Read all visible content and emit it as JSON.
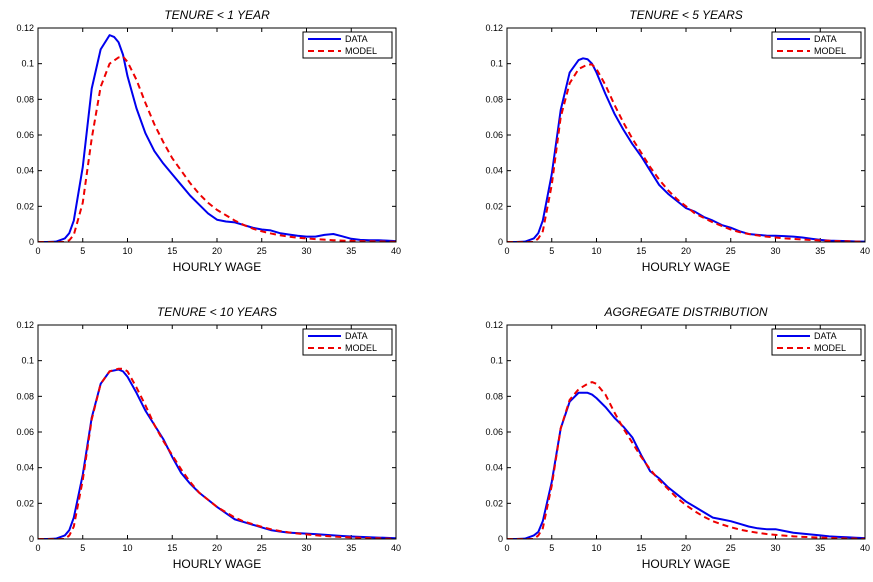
{
  "chart_data": [
    {
      "type": "line",
      "title": "TENURE < 1 YEAR",
      "xlabel": "HOURLY WAGE",
      "ylabel": "",
      "xlim": [
        0,
        40
      ],
      "ylim": [
        0,
        0.12
      ],
      "xticks": [
        "0",
        "5",
        "10",
        "15",
        "20",
        "25",
        "30",
        "35",
        "40"
      ],
      "yticks": [
        "0",
        "0.02",
        "0.04",
        "0.06",
        "0.08",
        "0.1",
        "0.12"
      ],
      "grid": false,
      "legend_position": "top-right",
      "series": [
        {
          "name": "DATA",
          "color": "#0000ee",
          "style": "solid",
          "x": [
            0,
            1,
            2,
            3,
            3.5,
            4,
            5,
            6,
            7,
            8,
            8.5,
            9,
            9.5,
            10,
            11,
            12,
            13,
            14,
            15,
            16,
            17,
            18,
            19,
            20,
            21,
            22,
            23,
            24,
            25,
            26,
            27,
            28,
            29,
            30,
            31,
            32,
            33,
            34,
            35,
            36,
            37,
            38,
            39,
            40
          ],
          "y": [
            0,
            0,
            0.0002,
            0.002,
            0.005,
            0.012,
            0.042,
            0.086,
            0.108,
            0.116,
            0.115,
            0.112,
            0.105,
            0.093,
            0.075,
            0.061,
            0.051,
            0.044,
            0.038,
            0.032,
            0.026,
            0.021,
            0.016,
            0.0125,
            0.0115,
            0.011,
            0.0095,
            0.008,
            0.007,
            0.0065,
            0.005,
            0.0042,
            0.0035,
            0.003,
            0.003,
            0.004,
            0.0045,
            0.0032,
            0.0018,
            0.0012,
            0.001,
            0.001,
            0.0008,
            0.0005
          ]
        },
        {
          "name": "MODEL",
          "color": "#ee0000",
          "style": "dashed",
          "x": [
            0,
            1,
            2,
            3,
            3.5,
            4,
            5,
            6,
            7,
            8,
            9,
            9.5,
            10,
            11,
            12,
            13,
            14,
            15,
            16,
            17,
            18,
            19,
            20,
            21,
            22,
            23,
            24,
            25,
            26,
            27,
            28,
            29,
            30,
            31,
            32,
            33,
            34,
            35,
            36,
            37,
            38,
            39,
            40
          ],
          "y": [
            0,
            0,
            0,
            0,
            0.001,
            0.004,
            0.022,
            0.058,
            0.087,
            0.1,
            0.1035,
            0.104,
            0.101,
            0.091,
            0.078,
            0.066,
            0.056,
            0.047,
            0.04,
            0.033,
            0.027,
            0.022,
            0.018,
            0.015,
            0.012,
            0.0095,
            0.0075,
            0.006,
            0.0048,
            0.0038,
            0.003,
            0.0024,
            0.002,
            0.0016,
            0.0013,
            0.001,
            0.0008,
            0.0006,
            0.0005,
            0.0004,
            0.0003,
            0.0002,
            0.0001
          ]
        }
      ]
    },
    {
      "type": "line",
      "title": "TENURE < 5 YEARS",
      "xlabel": "HOURLY WAGE",
      "ylabel": "",
      "xlim": [
        0,
        40
      ],
      "ylim": [
        0,
        0.12
      ],
      "xticks": [
        "0",
        "5",
        "10",
        "15",
        "20",
        "25",
        "30",
        "35",
        "40"
      ],
      "yticks": [
        "0",
        "0.02",
        "0.04",
        "0.06",
        "0.08",
        "0.1",
        "0.12"
      ],
      "grid": false,
      "legend_position": "top-right",
      "series": [
        {
          "name": "DATA",
          "color": "#0000ee",
          "style": "solid",
          "x": [
            0,
            1,
            2,
            3,
            3.5,
            4,
            5,
            6,
            7,
            8,
            8.5,
            9,
            9.5,
            10,
            11,
            12,
            13,
            14,
            15,
            16,
            17,
            18,
            19,
            20,
            21,
            22,
            23,
            24,
            25,
            26,
            27,
            28,
            29,
            30,
            31,
            32,
            33,
            34,
            35,
            36,
            37,
            38,
            39,
            40
          ],
          "y": [
            0,
            0,
            0.0002,
            0.002,
            0.005,
            0.012,
            0.038,
            0.074,
            0.095,
            0.102,
            0.103,
            0.1025,
            0.1,
            0.095,
            0.083,
            0.072,
            0.063,
            0.055,
            0.048,
            0.04,
            0.032,
            0.027,
            0.023,
            0.019,
            0.017,
            0.014,
            0.012,
            0.0095,
            0.008,
            0.006,
            0.0045,
            0.004,
            0.0036,
            0.0035,
            0.0033,
            0.003,
            0.0025,
            0.0018,
            0.0012,
            0.0008,
            0.0006,
            0.0005,
            0.0003,
            0.0002
          ]
        },
        {
          "name": "MODEL",
          "color": "#ee0000",
          "style": "dashed",
          "x": [
            0,
            1,
            2,
            3,
            3.5,
            4,
            5,
            6,
            7,
            8,
            9,
            9.5,
            10,
            11,
            12,
            13,
            14,
            15,
            16,
            17,
            18,
            19,
            20,
            21,
            22,
            23,
            24,
            25,
            26,
            27,
            28,
            29,
            30,
            31,
            32,
            33,
            34,
            35,
            36,
            37,
            38,
            39,
            40
          ],
          "y": [
            0,
            0,
            0,
            0,
            0.002,
            0.006,
            0.032,
            0.07,
            0.089,
            0.097,
            0.0995,
            0.0995,
            0.097,
            0.088,
            0.077,
            0.067,
            0.058,
            0.05,
            0.042,
            0.035,
            0.029,
            0.024,
            0.02,
            0.016,
            0.0135,
            0.011,
            0.009,
            0.007,
            0.0055,
            0.0045,
            0.0037,
            0.003,
            0.0025,
            0.002,
            0.0017,
            0.0014,
            0.0011,
            0.0009,
            0.0007,
            0.0005,
            0.0004,
            0.0002,
            0.0001
          ]
        }
      ]
    },
    {
      "type": "line",
      "title": "TENURE < 10 YEARS",
      "xlabel": "HOURLY WAGE",
      "ylabel": "",
      "xlim": [
        0,
        40
      ],
      "ylim": [
        0,
        0.12
      ],
      "xticks": [
        "0",
        "5",
        "10",
        "15",
        "20",
        "25",
        "30",
        "35",
        "40"
      ],
      "yticks": [
        "0",
        "0.02",
        "0.04",
        "0.06",
        "0.08",
        "0.1",
        "0.12"
      ],
      "grid": false,
      "legend_position": "top-right",
      "series": [
        {
          "name": "DATA",
          "color": "#0000ee",
          "style": "solid",
          "x": [
            0,
            1,
            2,
            3,
            3.5,
            4,
            5,
            6,
            7,
            8,
            9,
            9.5,
            10,
            11,
            12,
            13,
            14,
            15,
            16,
            17,
            18,
            19,
            20,
            21,
            22,
            23,
            24,
            25,
            26,
            27,
            28,
            29,
            30,
            31,
            32,
            33,
            34,
            35,
            36,
            37,
            38,
            39,
            40
          ],
          "y": [
            0,
            0,
            0.0002,
            0.002,
            0.005,
            0.012,
            0.036,
            0.068,
            0.087,
            0.094,
            0.095,
            0.094,
            0.091,
            0.082,
            0.072,
            0.064,
            0.056,
            0.046,
            0.037,
            0.031,
            0.026,
            0.022,
            0.018,
            0.0145,
            0.011,
            0.0095,
            0.008,
            0.0065,
            0.005,
            0.0042,
            0.0036,
            0.0033,
            0.003,
            0.0027,
            0.0024,
            0.002,
            0.0017,
            0.0014,
            0.0012,
            0.001,
            0.0008,
            0.0006,
            0.0004
          ]
        },
        {
          "name": "MODEL",
          "color": "#ee0000",
          "style": "dashed",
          "x": [
            0,
            1,
            2,
            3,
            3.5,
            4,
            5,
            6,
            7,
            8,
            9,
            9.5,
            10,
            11,
            12,
            13,
            14,
            15,
            16,
            17,
            18,
            19,
            20,
            21,
            22,
            23,
            24,
            25,
            26,
            27,
            28,
            29,
            30,
            31,
            32,
            33,
            34,
            35,
            36,
            37,
            38,
            39,
            40
          ],
          "y": [
            0,
            0,
            0,
            0,
            0.002,
            0.007,
            0.033,
            0.067,
            0.087,
            0.094,
            0.0955,
            0.0955,
            0.094,
            0.085,
            0.075,
            0.064,
            0.055,
            0.047,
            0.039,
            0.032,
            0.026,
            0.022,
            0.018,
            0.015,
            0.012,
            0.0098,
            0.0083,
            0.0068,
            0.0055,
            0.0045,
            0.0037,
            0.0031,
            0.0026,
            0.0021,
            0.0017,
            0.0014,
            0.0011,
            0.0009,
            0.0007,
            0.0005,
            0.0004,
            0.0002,
            0.0001
          ]
        }
      ]
    },
    {
      "type": "line",
      "title": "AGGREGATE DISTRIBUTION",
      "xlabel": "HOURLY WAGE",
      "ylabel": "",
      "xlim": [
        0,
        40
      ],
      "ylim": [
        0,
        0.12
      ],
      "xticks": [
        "0",
        "5",
        "10",
        "15",
        "20",
        "25",
        "30",
        "35",
        "40"
      ],
      "yticks": [
        "0",
        "0.02",
        "0.04",
        "0.06",
        "0.08",
        "0.1",
        "0.12"
      ],
      "grid": false,
      "legend_position": "top-right",
      "series": [
        {
          "name": "DATA",
          "color": "#0000ee",
          "style": "solid",
          "x": [
            0,
            1,
            2,
            3,
            3.5,
            4,
            5,
            6,
            7,
            8,
            9,
            9.5,
            10,
            11,
            12,
            13,
            14,
            15,
            16,
            17,
            18,
            19,
            20,
            21,
            22,
            23,
            24,
            25,
            26,
            27,
            28,
            29,
            30,
            31,
            32,
            33,
            34,
            35,
            36,
            37,
            38,
            39,
            40
          ],
          "y": [
            0,
            0,
            0.0002,
            0.002,
            0.004,
            0.01,
            0.032,
            0.062,
            0.077,
            0.082,
            0.082,
            0.081,
            0.079,
            0.074,
            0.068,
            0.063,
            0.057,
            0.047,
            0.038,
            0.034,
            0.029,
            0.025,
            0.021,
            0.018,
            0.015,
            0.012,
            0.011,
            0.01,
            0.0085,
            0.007,
            0.006,
            0.0055,
            0.0055,
            0.0045,
            0.0035,
            0.003,
            0.0025,
            0.002,
            0.0015,
            0.0012,
            0.001,
            0.0007,
            0.0005
          ]
        },
        {
          "name": "MODEL",
          "color": "#ee0000",
          "style": "dashed",
          "x": [
            0,
            1,
            2,
            3,
            3.5,
            4,
            5,
            6,
            7,
            8,
            9,
            9.5,
            10,
            11,
            12,
            13,
            14,
            15,
            16,
            17,
            18,
            19,
            20,
            21,
            22,
            23,
            24,
            25,
            26,
            27,
            28,
            29,
            30,
            31,
            32,
            33,
            34,
            35,
            36,
            37,
            38,
            39,
            40
          ],
          "y": [
            0,
            0,
            0,
            0,
            0.002,
            0.006,
            0.03,
            0.062,
            0.078,
            0.084,
            0.087,
            0.088,
            0.087,
            0.081,
            0.071,
            0.062,
            0.054,
            0.046,
            0.039,
            0.033,
            0.028,
            0.023,
            0.019,
            0.0155,
            0.0125,
            0.01,
            0.0082,
            0.0066,
            0.0053,
            0.0043,
            0.0035,
            0.0028,
            0.0023,
            0.0019,
            0.0015,
            0.0012,
            0.001,
            0.0008,
            0.0006,
            0.0004,
            0.0003,
            0.0002,
            0.0001
          ]
        }
      ]
    }
  ]
}
